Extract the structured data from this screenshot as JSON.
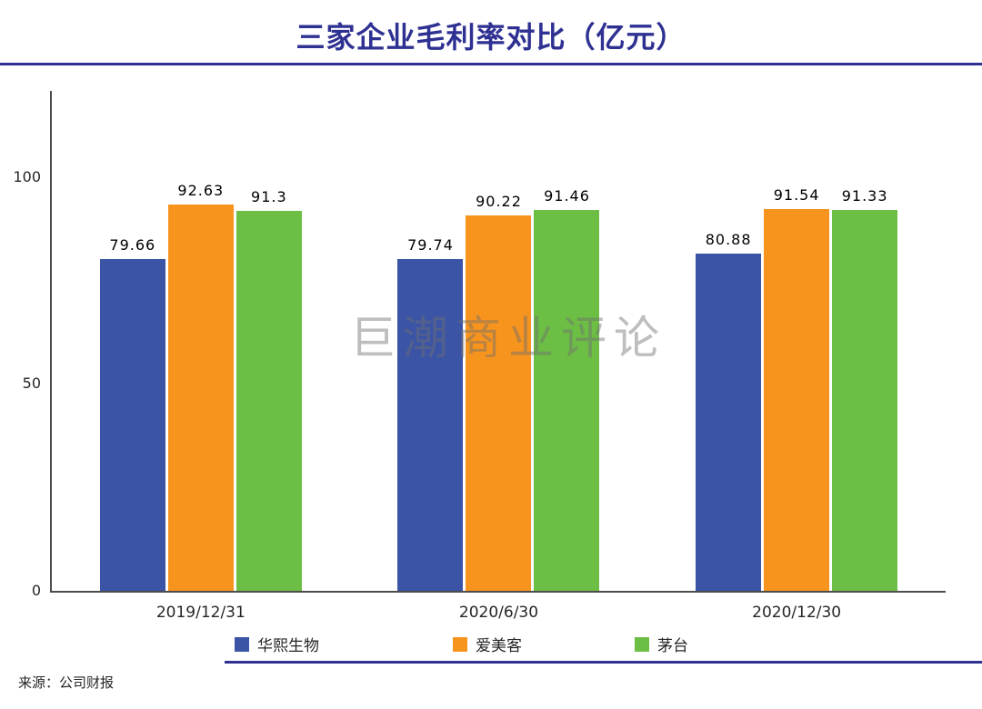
{
  "page": {
    "title": "三家企业毛利率对比（亿元）"
  },
  "colors": {
    "accent": "#2E3192",
    "axis": "#4D4D4D",
    "series_blue": "#3B54A6",
    "series_orange": "#F7941E",
    "series_green": "#6CBE45"
  },
  "watermark": "巨潮商业评论",
  "source": "来源：公司财报",
  "chart_data": {
    "type": "bar",
    "title": "三家企业毛利率对比（亿元）",
    "categories": [
      "2019/12/31",
      "2020/6/30",
      "2020/12/30"
    ],
    "series": [
      {
        "name": "华熙生物",
        "color": "#3B54A6",
        "values": [
          79.66,
          79.74,
          80.88
        ]
      },
      {
        "name": "爱美客",
        "color": "#F7941E",
        "values": [
          92.63,
          90.22,
          91.54
        ]
      },
      {
        "name": "茅台",
        "color": "#6CBE45",
        "values": [
          91.3,
          91.46,
          91.33
        ]
      }
    ],
    "xlabel": "",
    "ylabel": "",
    "ylim": [
      0,
      120
    ],
    "yticks": [
      "0",
      "50",
      "100"
    ],
    "grid": false,
    "legend_position": "bottom",
    "value_labels": true
  }
}
